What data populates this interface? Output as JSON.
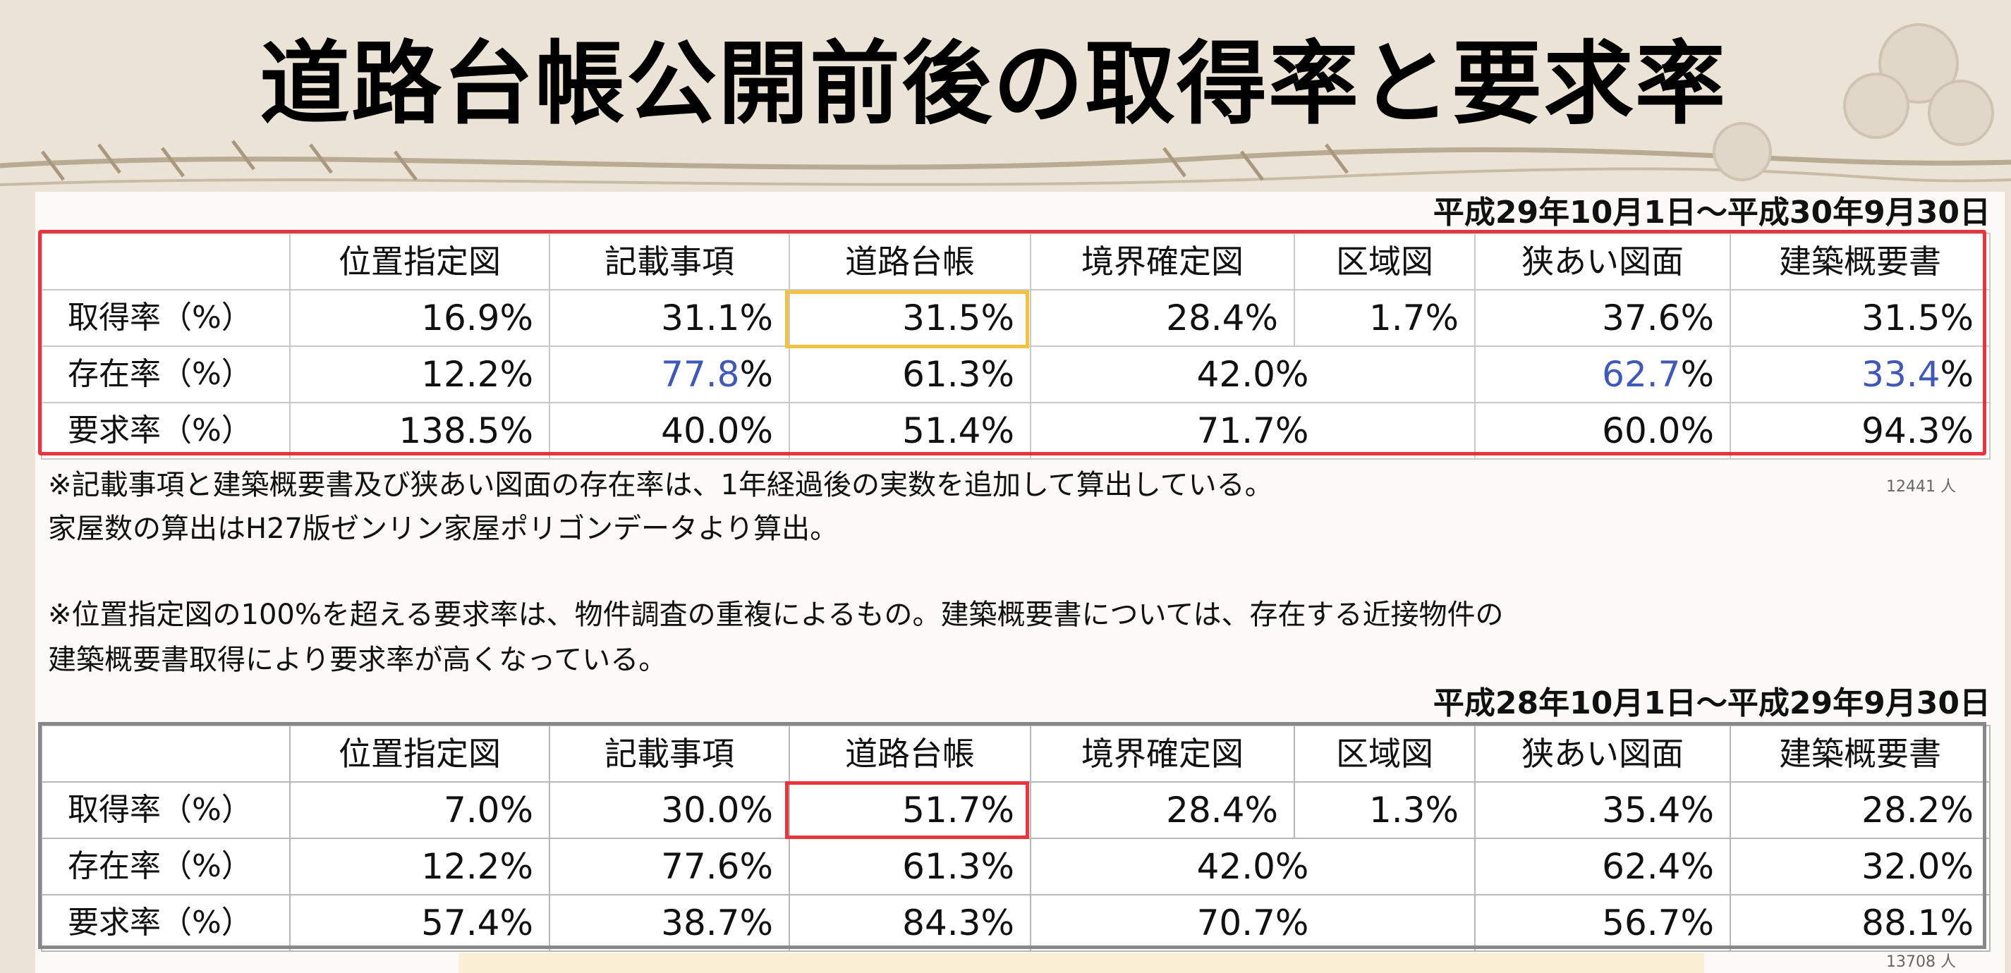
{
  "title": "道路台帳公開前後の取得率と要求率",
  "table1": {
    "period": "平成29年10月1日～平成30年9月30日",
    "headers": [
      "",
      "位置指定図",
      "記載事項",
      "道路台帳",
      "境界確定図",
      "区域図",
      "狭あい図面",
      "建築概要書"
    ],
    "rows": [
      {
        "label": "取得率（%）",
        "cells": [
          "16.9%",
          "31.1%",
          "31.5%",
          "28.4%",
          "1.7%",
          "37.6%",
          "31.5%"
        ]
      },
      {
        "label": "存在率（%）",
        "cells": [
          "12.2%",
          "77.8",
          "%",
          "61.3%",
          "42.0%",
          "62.7",
          "%",
          "33.4",
          "%"
        ]
      },
      {
        "label": "要求率（%）",
        "cells": [
          "138.5%",
          "40.0%",
          "51.4%",
          "71.7%",
          "60.0%",
          "94.3%"
        ]
      }
    ],
    "count": "12441 人"
  },
  "notes": [
    "※記載事項と建築概要書及び狭あい図面の存在率は、1年経過後の実数を追加して算出している。",
    "家屋数の算出はH27版ゼンリン家屋ポリゴンデータより算出。",
    "※位置指定図の100%を超える要求率は、物件調査の重複によるもの。建築概要書については、存在する近接物件の",
    "建築概要書取得により要求率が高くなっている。"
  ],
  "table2": {
    "period": "平成28年10月1日～平成29年9月30日",
    "headers": [
      "",
      "位置指定図",
      "記載事項",
      "道路台帳",
      "境界確定図",
      "区域図",
      "狭あい図面",
      "建築概要書"
    ],
    "rows": [
      {
        "label": "取得率（%）",
        "cells": [
          "7.0%",
          "30.0%",
          "51.7%",
          "28.4%",
          "1.3%",
          "35.4%",
          "28.2%"
        ]
      },
      {
        "label": "存在率（%）",
        "cells": [
          "12.2%",
          "77.6%",
          "61.3%",
          "42.0%",
          "62.4%",
          "32.0%"
        ]
      },
      {
        "label": "要求率（%）",
        "cells": [
          "57.4%",
          "38.7%",
          "84.3%",
          "70.7%",
          "56.7%",
          "88.1%"
        ]
      }
    ],
    "count": "13708 人"
  },
  "colors": {
    "frame_red": "#e8343f",
    "frame_yellow": "#f2c23e",
    "blue_value": "#4058b6"
  }
}
